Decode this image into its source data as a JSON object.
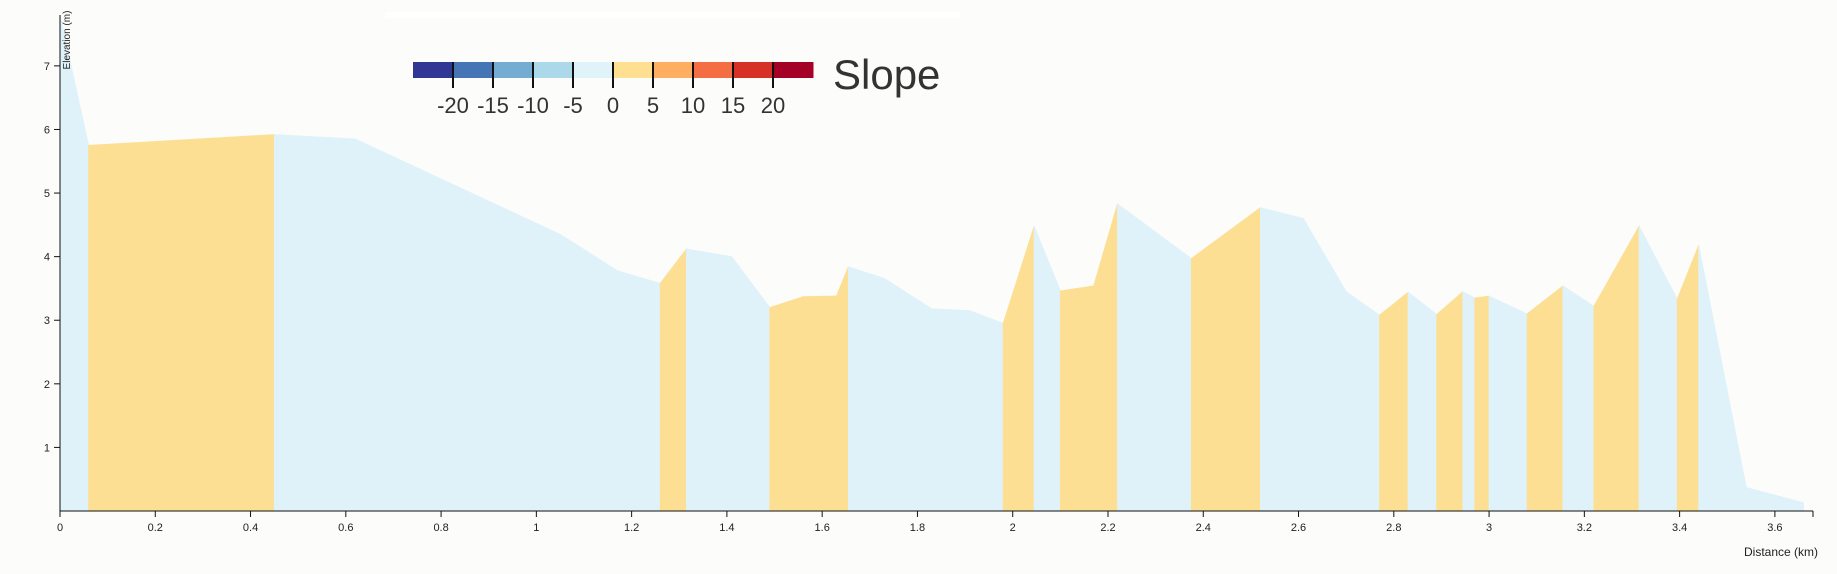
{
  "chart_data": {
    "type": "area",
    "xlabel": "Distance (km)",
    "ylabel": "Elevation (m)",
    "xlim": [
      0,
      3.68
    ],
    "ylim": [
      0,
      7.8
    ],
    "x_ticks": [
      0,
      0.2,
      0.4,
      0.6,
      0.8,
      1,
      1.2,
      1.4,
      1.6,
      1.8,
      2,
      2.2,
      2.4,
      2.6,
      2.8,
      3,
      3.2,
      3.4,
      3.6
    ],
    "x_tick_labels": [
      "0",
      "0.2",
      "0.4",
      "0.6",
      "0.8",
      "1",
      "1.2",
      "1.4",
      "1.6",
      "1.8",
      "2",
      "2.2",
      "2.4",
      "2.6",
      "2.8",
      "3",
      "3.2",
      "3.4",
      "3.6"
    ],
    "y_ticks": [
      1,
      2,
      3,
      4,
      5,
      6,
      7
    ],
    "y_tick_labels": [
      "1",
      "2",
      "3",
      "4",
      "5",
      "6",
      "7"
    ],
    "grid": false,
    "profile": {
      "x": [
        0,
        0.06,
        0.45,
        0.62,
        1.05,
        1.17,
        1.26,
        1.315,
        1.41,
        1.49,
        1.56,
        1.63,
        1.655,
        1.73,
        1.83,
        1.91,
        1.98,
        2.045,
        2.1,
        2.17,
        2.22,
        2.375,
        2.52,
        2.61,
        2.7,
        2.77,
        2.83,
        2.89,
        2.945,
        2.97,
        3.0,
        3.08,
        3.155,
        3.22,
        3.315,
        3.395,
        3.44,
        3.54,
        3.66
      ],
      "y": [
        7.8,
        5.75,
        5.92,
        5.85,
        4.35,
        3.78,
        3.58,
        4.12,
        4.0,
        3.2,
        3.37,
        3.38,
        3.84,
        3.66,
        3.18,
        3.15,
        2.95,
        4.48,
        3.46,
        3.54,
        4.83,
        3.97,
        4.77,
        4.6,
        3.45,
        3.08,
        3.44,
        3.09,
        3.45,
        3.35,
        3.38,
        3.1,
        3.54,
        3.22,
        4.48,
        3.33,
        4.18,
        0.37,
        0.13
      ],
      "slope_category": [
        "-",
        "+",
        "-",
        "-",
        "-",
        "-",
        "+",
        "-",
        "-",
        "+",
        "+",
        "+",
        "-",
        "-",
        "-",
        "-",
        "+",
        "-",
        "+",
        "+",
        "-",
        "+",
        "-",
        "-",
        "-",
        "+",
        "-",
        "+",
        "-",
        "+",
        "-",
        "+",
        "-",
        "+",
        "-",
        "+",
        "-",
        "-"
      ]
    },
    "colors": {
      "uphill": "#fddf94",
      "downhill": "#dff2f9"
    },
    "legend": {
      "title": "Slope",
      "placement": "top-center",
      "ticks": [
        "-20",
        "-15",
        "-10",
        "-5",
        "0",
        "5",
        "10",
        "15",
        "20"
      ],
      "colors": [
        "#313695",
        "#4575b4",
        "#74add1",
        "#abd9e9",
        "#e0f3f8",
        "#fee090",
        "#fdae61",
        "#f46d43",
        "#d73027",
        "#a50026"
      ]
    }
  }
}
